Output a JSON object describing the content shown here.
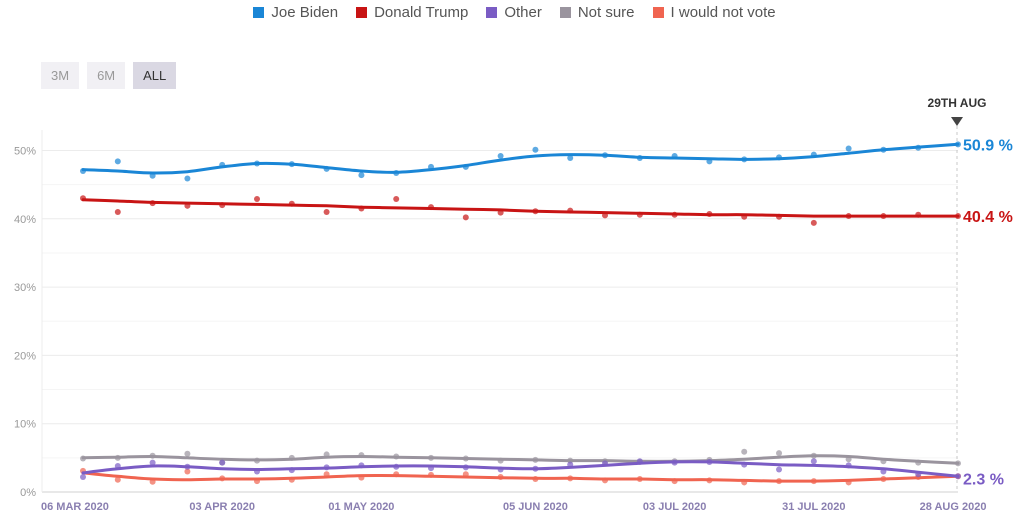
{
  "legend": [
    {
      "label": "Joe Biden",
      "color": "#1a86d6"
    },
    {
      "label": "Donald Trump",
      "color": "#c81414"
    },
    {
      "label": "Other",
      "color": "#7a5cc4"
    },
    {
      "label": "Not sure",
      "color": "#9a949e"
    },
    {
      "label": "I would not vote",
      "color": "#f06450"
    }
  ],
  "ranges": {
    "three_m": "3M",
    "six_m": "6M",
    "all": "ALL",
    "selected": "ALL"
  },
  "marker": {
    "label": "29TH AUG"
  },
  "end_labels": {
    "biden": "50.9 %",
    "trump": "40.4 %",
    "other": "2.3 %"
  },
  "chart_data": {
    "type": "line",
    "x_ticks": [
      "06 MAR 2020",
      "03 APR 2020",
      "01 MAY 2020",
      "05 JUN 2020",
      "03 JUL 2020",
      "31 JUL 2020",
      "28 AUG 2020"
    ],
    "x_tick_dates": [
      "2020-03-06",
      "2020-04-03",
      "2020-05-01",
      "2020-06-05",
      "2020-07-03",
      "2020-07-31",
      "2020-08-28"
    ],
    "x_range": [
      "2020-03-06",
      "2020-08-29"
    ],
    "y_ticks": [
      "0%",
      "10%",
      "20%",
      "30%",
      "40%",
      "50%"
    ],
    "y_tick_values": [
      0,
      10,
      20,
      30,
      40,
      50
    ],
    "ylim": [
      0,
      53
    ],
    "grid": true,
    "legend_position": "top",
    "dates": [
      "2020-03-06",
      "2020-03-13",
      "2020-03-20",
      "2020-03-27",
      "2020-04-03",
      "2020-04-10",
      "2020-04-17",
      "2020-04-24",
      "2020-05-01",
      "2020-05-08",
      "2020-05-15",
      "2020-05-22",
      "2020-05-29",
      "2020-06-05",
      "2020-06-12",
      "2020-06-19",
      "2020-06-26",
      "2020-07-03",
      "2020-07-10",
      "2020-07-17",
      "2020-07-24",
      "2020-07-31",
      "2020-08-07",
      "2020-08-14",
      "2020-08-21",
      "2020-08-29"
    ],
    "series": [
      {
        "name": "Joe Biden",
        "color": "#1a86d6",
        "values": [
          47.2,
          47.0,
          46.7,
          46.9,
          47.6,
          48.1,
          48.0,
          47.5,
          47.0,
          46.8,
          47.2,
          47.8,
          48.6,
          49.2,
          49.4,
          49.3,
          49.0,
          48.9,
          48.8,
          48.7,
          48.8,
          49.1,
          49.6,
          50.1,
          50.5,
          50.9
        ],
        "points": [
          47.0,
          48.4,
          46.3,
          45.9,
          47.9,
          48.1,
          48.0,
          47.3,
          46.4,
          46.7,
          47.6,
          47.6,
          49.2,
          50.1,
          48.9,
          49.3,
          48.9,
          49.2,
          48.4,
          48.7,
          49.0,
          49.4,
          50.3,
          50.1,
          50.4,
          50.9
        ]
      },
      {
        "name": "Donald Trump",
        "color": "#c81414",
        "values": [
          42.8,
          42.6,
          42.4,
          42.3,
          42.2,
          42.1,
          42.0,
          41.9,
          41.7,
          41.6,
          41.5,
          41.4,
          41.3,
          41.1,
          41.0,
          40.9,
          40.8,
          40.7,
          40.6,
          40.6,
          40.5,
          40.4,
          40.4,
          40.4,
          40.4,
          40.4
        ],
        "points": [
          43.0,
          41.0,
          42.3,
          41.9,
          42.0,
          42.9,
          42.2,
          41.0,
          41.5,
          42.9,
          41.7,
          40.2,
          40.9,
          41.1,
          41.2,
          40.5,
          40.6,
          40.6,
          40.7,
          40.3,
          40.3,
          39.4,
          40.4,
          40.4,
          40.6,
          40.4
        ]
      },
      {
        "name": "Other",
        "color": "#7a5cc4",
        "values": [
          2.8,
          3.4,
          3.8,
          3.7,
          3.4,
          3.3,
          3.4,
          3.5,
          3.7,
          3.8,
          3.8,
          3.7,
          3.5,
          3.4,
          3.6,
          3.9,
          4.2,
          4.4,
          4.4,
          4.2,
          4.0,
          3.9,
          3.7,
          3.4,
          2.9,
          2.3
        ],
        "points": [
          2.2,
          3.8,
          4.3,
          3.7,
          4.3,
          3.0,
          3.2,
          3.6,
          3.9,
          3.7,
          3.5,
          3.6,
          3.3,
          3.4,
          4.0,
          4.2,
          4.5,
          4.3,
          4.4,
          4.0,
          3.3,
          4.5,
          3.9,
          3.0,
          2.6,
          2.3
        ]
      },
      {
        "name": "Not sure",
        "color": "#9a949e",
        "values": [
          5.0,
          5.1,
          5.2,
          5.0,
          4.8,
          4.7,
          4.8,
          5.1,
          5.2,
          5.1,
          5.0,
          4.9,
          4.8,
          4.7,
          4.6,
          4.6,
          4.5,
          4.5,
          4.6,
          4.8,
          5.1,
          5.3,
          5.2,
          4.8,
          4.5,
          4.2
        ],
        "points": [
          4.9,
          5.0,
          5.3,
          5.6,
          4.3,
          4.6,
          5.0,
          5.5,
          5.4,
          5.2,
          5.0,
          4.9,
          4.6,
          4.7,
          4.6,
          4.5,
          4.4,
          4.5,
          4.7,
          5.9,
          5.7,
          5.3,
          4.8,
          4.5,
          4.3,
          4.2
        ]
      },
      {
        "name": "I would not vote",
        "color": "#f06450",
        "values": [
          2.8,
          2.3,
          1.9,
          1.8,
          1.9,
          1.9,
          2.0,
          2.2,
          2.4,
          2.4,
          2.3,
          2.2,
          2.1,
          2.0,
          2.0,
          1.9,
          1.9,
          1.8,
          1.8,
          1.7,
          1.6,
          1.6,
          1.7,
          1.9,
          2.1,
          2.3
        ],
        "points": [
          3.1,
          1.8,
          1.5,
          3.0,
          2.0,
          1.6,
          1.8,
          2.6,
          2.1,
          2.6,
          2.5,
          2.6,
          2.2,
          1.9,
          2.0,
          1.7,
          1.9,
          1.6,
          1.7,
          1.4,
          1.6,
          1.6,
          1.4,
          1.9,
          2.2,
          2.3
        ]
      }
    ]
  }
}
